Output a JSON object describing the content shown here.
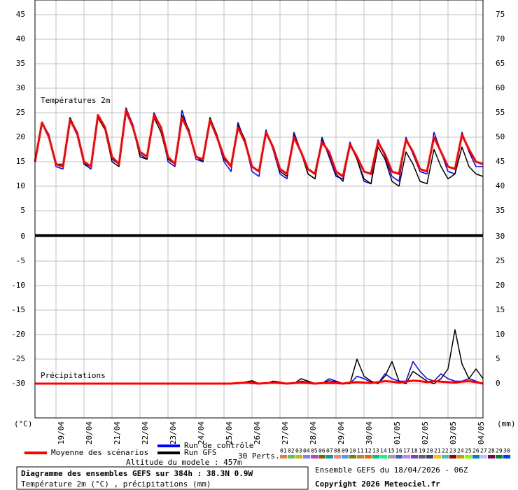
{
  "chart_data": [
    {
      "type": "line",
      "title": "Températures 2m",
      "x": [
        0,
        6,
        12,
        18,
        24,
        30,
        36,
        42,
        48,
        54,
        60,
        66,
        72,
        78,
        84,
        90,
        96,
        102,
        108,
        114,
        120,
        126,
        132,
        138,
        144,
        150,
        156,
        162,
        168,
        174,
        180,
        186,
        192,
        198,
        204,
        210,
        216,
        222,
        228,
        234,
        240,
        246,
        252,
        258,
        264,
        270,
        276,
        282,
        288,
        294,
        300,
        306,
        312,
        318,
        324,
        330,
        336,
        342,
        348,
        354,
        360,
        366,
        372,
        378,
        384
      ],
      "xlim": [
        0,
        384
      ],
      "ylim": [
        0,
        48
      ],
      "yticks": [
        5,
        10,
        15,
        20,
        25,
        30,
        35,
        40,
        45
      ],
      "y2lim": [
        30,
        78
      ],
      "y2ticks": [
        35,
        40,
        45,
        50,
        55,
        60,
        65,
        70,
        75
      ],
      "grid": true,
      "series": [
        {
          "name": "Run de contrôle",
          "color": "#0000ff",
          "values": [
            15,
            23,
            20.5,
            14,
            13.5,
            23.5,
            20.5,
            14.5,
            13.5,
            24.5,
            22,
            15.5,
            14.5,
            26,
            22.5,
            16.5,
            15.5,
            25,
            22,
            15,
            14,
            25.5,
            21,
            15.5,
            15,
            24,
            20,
            15,
            13,
            23,
            19,
            13,
            12,
            21.5,
            17.5,
            12.5,
            11.5,
            21,
            17,
            12.5,
            11.5,
            20,
            16,
            12,
            11.5,
            19,
            15.5,
            11,
            10.5,
            19.5,
            16,
            12,
            11,
            20,
            16.5,
            13,
            12.5,
            21,
            17,
            13,
            12.5,
            21,
            17,
            14,
            14
          ]
        },
        {
          "name": "Run GFS",
          "color": "#000000",
          "values": [
            15,
            23,
            20,
            14.5,
            14.5,
            24,
            21,
            14.5,
            14,
            24,
            21.5,
            15,
            14,
            25,
            22,
            16,
            15.5,
            24,
            21,
            15.5,
            14.5,
            24.5,
            21.5,
            16,
            15,
            24,
            20.5,
            15.5,
            14,
            22.5,
            19.5,
            14,
            13,
            21,
            18,
            13,
            12,
            20.5,
            17,
            12.5,
            11.5,
            19.5,
            16.5,
            12.5,
            11,
            18.5,
            15.5,
            11.5,
            10.5,
            18,
            15.5,
            11,
            10,
            17,
            14.5,
            11,
            10.5,
            17.5,
            14,
            11.5,
            12.5,
            18,
            14,
            12.5,
            12
          ]
        },
        {
          "name": "Moyenne des scénarios",
          "color": "#ff0000",
          "values": [
            15,
            23,
            20,
            14.5,
            14,
            23.5,
            21,
            15,
            14,
            24.5,
            22,
            16,
            14.5,
            25.5,
            22,
            17,
            16,
            24.5,
            22,
            16,
            14.5,
            24,
            21,
            16,
            15.5,
            23.5,
            20,
            16,
            14,
            22,
            19,
            14,
            13,
            21,
            18,
            13.5,
            12.5,
            20,
            17,
            13.5,
            12.5,
            19,
            17,
            13,
            12,
            18.5,
            16,
            13,
            12.5,
            19,
            16.5,
            13,
            12.5,
            19.5,
            17,
            13.5,
            13,
            20,
            17,
            14,
            13.5,
            20.5,
            17.5,
            15,
            14.5
          ]
        }
      ]
    },
    {
      "type": "line",
      "title": "Précipitations",
      "x": [
        0,
        6,
        12,
        18,
        24,
        30,
        36,
        42,
        48,
        54,
        60,
        66,
        72,
        78,
        84,
        90,
        96,
        102,
        108,
        114,
        120,
        126,
        132,
        138,
        144,
        150,
        156,
        162,
        168,
        174,
        180,
        186,
        192,
        198,
        204,
        210,
        216,
        222,
        228,
        234,
        240,
        246,
        252,
        258,
        264,
        270,
        276,
        282,
        288,
        294,
        300,
        306,
        312,
        318,
        324,
        330,
        336,
        342,
        348,
        354,
        360,
        366,
        372,
        378,
        384
      ],
      "xlim": [
        0,
        384
      ],
      "xticks": [
        {
          "value": 18,
          "label": "19/04"
        },
        {
          "value": 42,
          "label": "20/04"
        },
        {
          "value": 66,
          "label": "21/04"
        },
        {
          "value": 90,
          "label": "22/04"
        },
        {
          "value": 114,
          "label": "23/04"
        },
        {
          "value": 138,
          "label": "24/04"
        },
        {
          "value": 162,
          "label": "25/04"
        },
        {
          "value": 186,
          "label": "26/04"
        },
        {
          "value": 210,
          "label": "27/04"
        },
        {
          "value": 234,
          "label": "28/04"
        },
        {
          "value": 258,
          "label": "29/04"
        },
        {
          "value": 282,
          "label": "30/04"
        },
        {
          "value": 306,
          "label": "01/05"
        },
        {
          "value": 330,
          "label": "02/05"
        },
        {
          "value": 354,
          "label": "03/05"
        },
        {
          "value": 378,
          "label": "04/05"
        }
      ],
      "ylim": [
        -37,
        0
      ],
      "yticks": [
        -30,
        -25,
        -20,
        -15,
        -10,
        -5,
        0
      ],
      "y_label": "(°C)",
      "y2lim": [
        -7,
        30
      ],
      "y2ticks": [
        0,
        5,
        10,
        15,
        20,
        25,
        30
      ],
      "y2_label": "(mm)",
      "grid": true,
      "series": [
        {
          "name": "Run de contrôle",
          "color": "#0000ff",
          "axis": "y2",
          "values": [
            0,
            0,
            0,
            0,
            0,
            0,
            0,
            0,
            0,
            0,
            0,
            0,
            0,
            0,
            0,
            0,
            0,
            0,
            0,
            0,
            0,
            0,
            0,
            0,
            0,
            0,
            0,
            0,
            0,
            0,
            0.3,
            0.5,
            0,
            0,
            0.4,
            0.2,
            0,
            0,
            0.5,
            0.3,
            0,
            0,
            1,
            0.5,
            0,
            0,
            1.5,
            1,
            0.3,
            0,
            2,
            1,
            0.5,
            0.5,
            4.5,
            2.5,
            1,
            0.5,
            2,
            1,
            0.5,
            0.5,
            1,
            0.5,
            0
          ]
        },
        {
          "name": "Run GFS",
          "color": "#000000",
          "axis": "y2",
          "values": [
            0,
            0,
            0,
            0,
            0,
            0,
            0,
            0,
            0,
            0,
            0,
            0,
            0,
            0,
            0,
            0,
            0,
            0,
            0,
            0,
            0,
            0,
            0,
            0,
            0,
            0,
            0,
            0,
            0,
            0,
            0.3,
            0.6,
            0,
            0,
            0.5,
            0.3,
            0,
            0,
            1,
            0.5,
            0,
            0,
            0.6,
            0.3,
            0,
            0,
            5,
            1.5,
            0.5,
            0,
            1.5,
            4.5,
            0.5,
            0,
            2.5,
            1.5,
            0.5,
            0,
            1,
            3,
            11,
            4,
            1,
            3,
            1
          ]
        },
        {
          "name": "Moyenne des scénarios",
          "color": "#ff0000",
          "axis": "y2",
          "values": [
            0,
            0,
            0,
            0,
            0,
            0,
            0,
            0,
            0,
            0,
            0,
            0,
            0,
            0,
            0,
            0,
            0,
            0,
            0,
            0,
            0,
            0,
            0,
            0,
            0,
            0,
            0,
            0,
            0,
            0.1,
            0.2,
            0.1,
            0,
            0.1,
            0.2,
            0.1,
            0,
            0.1,
            0.2,
            0.1,
            0,
            0.1,
            0.1,
            0.1,
            0,
            0.2,
            0.3,
            0.2,
            0.1,
            0.3,
            0.5,
            0.4,
            0.2,
            0.4,
            0.6,
            0.5,
            0.3,
            0.5,
            0.4,
            0.3,
            0.2,
            0.4,
            0.5,
            0.3,
            0
          ]
        }
      ]
    }
  ],
  "perturbations": {
    "label": "30 Perts.",
    "members": [
      {
        "name": "01",
        "color": "#e08040"
      },
      {
        "name": "02",
        "color": "#60c060"
      },
      {
        "name": "03",
        "color": "#c0c000"
      },
      {
        "name": "04",
        "color": "#8080ff"
      },
      {
        "name": "05",
        "color": "#c040c0"
      },
      {
        "name": "06",
        "color": "#806000"
      },
      {
        "name": "07",
        "color": "#00a0a0"
      },
      {
        "name": "08",
        "color": "#ff8080"
      },
      {
        "name": "09",
        "color": "#40a0ff"
      },
      {
        "name": "10",
        "color": "#808000"
      },
      {
        "name": "11",
        "color": "#c08040"
      },
      {
        "name": "12",
        "color": "#ff6000"
      },
      {
        "name": "13",
        "color": "#00c080"
      },
      {
        "name": "14",
        "color": "#00ff80"
      },
      {
        "name": "15",
        "color": "#a0a0a0"
      },
      {
        "name": "16",
        "color": "#4060c0"
      },
      {
        "name": "17",
        "color": "#c080ff"
      },
      {
        "name": "18",
        "color": "#8040c0"
      },
      {
        "name": "19",
        "color": "#606060"
      },
      {
        "name": "20",
        "color": "#404080"
      },
      {
        "name": "21",
        "color": "#ffc000"
      },
      {
        "name": "22",
        "color": "#40c0c0"
      },
      {
        "name": "23",
        "color": "#a00000"
      },
      {
        "name": "24",
        "color": "#c0a000"
      },
      {
        "name": "25",
        "color": "#80ff00"
      },
      {
        "name": "26",
        "color": "#0080c0"
      },
      {
        "name": "27",
        "color": "#c0c0ff"
      },
      {
        "name": "28",
        "color": "#800040"
      },
      {
        "name": "29",
        "color": "#008040"
      },
      {
        "name": "30",
        "color": "#0040ff"
      }
    ]
  },
  "altitude": "Altitude du modele : 457m",
  "footer": {
    "title": "Diagramme des ensembles GEFS sur 384h : 38.3N 0.9W",
    "subtitle": "Température 2m (°C) , précipitations (mm)",
    "run": "Ensemble GEFS du 18/04/2026 - 06Z",
    "copyright": "Copyright 2026 Meteociel.fr"
  }
}
